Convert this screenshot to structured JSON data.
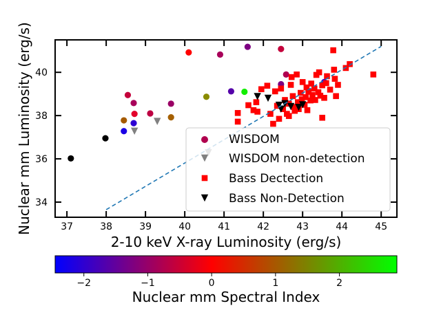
{
  "chart_data": {
    "type": "scatter",
    "xlabel": "2-10 keV X-ray Luminosity (erg/s)",
    "ylabel": "Nuclear mm Luminosity (erg/s)",
    "xlim": [
      36.7,
      45.4
    ],
    "ylim": [
      33.3,
      41.5
    ],
    "xticks": [
      "37",
      "38",
      "39",
      "40",
      "41",
      "42",
      "43",
      "44",
      "45"
    ],
    "yticks": [
      "34",
      "36",
      "38",
      "40"
    ],
    "grid": false,
    "legend_position": "lower-right",
    "colorbar": {
      "label": "Nuclear mm Spectral Index",
      "range": [
        -2.45,
        2.9
      ],
      "ticks": [
        "−2",
        "−1",
        "0",
        "1",
        "2"
      ],
      "colors": [
        "#0000ff",
        "#ff0000",
        "#00ff00"
      ]
    },
    "trend_line": {
      "x": [
        38,
        45
      ],
      "y": [
        33.65,
        41.2
      ],
      "color": "#1f77b4",
      "style": "dashed"
    },
    "series": [
      {
        "name": "WISDOM",
        "marker": "circle",
        "points": [
          {
            "x": 37.1,
            "y": 36.02,
            "c": "#000000"
          },
          {
            "x": 37.98,
            "y": 36.95,
            "c": "#000000"
          },
          {
            "x": 38.45,
            "y": 37.28,
            "c": "#1a00e5"
          },
          {
            "x": 38.7,
            "y": 37.65,
            "c": "#2c00d3"
          },
          {
            "x": 38.45,
            "y": 37.78,
            "c": "#a55a00"
          },
          {
            "x": 38.72,
            "y": 38.08,
            "c": "#e3002b"
          },
          {
            "x": 39.12,
            "y": 38.1,
            "c": "#bd0042"
          },
          {
            "x": 38.55,
            "y": 38.95,
            "c": "#c4003b"
          },
          {
            "x": 38.7,
            "y": 38.58,
            "c": "#a8005a"
          },
          {
            "x": 39.65,
            "y": 37.92,
            "c": "#a56000"
          },
          {
            "x": 39.65,
            "y": 38.55,
            "c": "#9a0065"
          },
          {
            "x": 40.1,
            "y": 40.92,
            "c": "#ff0000"
          },
          {
            "x": 40.55,
            "y": 38.87,
            "c": "#8a8c00"
          },
          {
            "x": 40.9,
            "y": 40.82,
            "c": "#a8005a"
          },
          {
            "x": 41.18,
            "y": 39.12,
            "c": "#5500a9"
          },
          {
            "x": 41.52,
            "y": 39.1,
            "c": "#12ee00"
          },
          {
            "x": 41.6,
            "y": 41.18,
            "c": "#7d0082"
          },
          {
            "x": 42.45,
            "y": 41.08,
            "c": "#c4003b"
          },
          {
            "x": 42.58,
            "y": 39.9,
            "c": "#b00051"
          },
          {
            "x": 42.45,
            "y": 39.45,
            "c": "#7c0083"
          },
          {
            "x": 43.55,
            "y": 39.55,
            "c": "#2d00d2"
          }
        ]
      },
      {
        "name": "WISDOM non-detection",
        "marker": "triangle-down",
        "color": "#808080",
        "points": [
          {
            "x": 38.72,
            "y": 37.28
          },
          {
            "x": 39.3,
            "y": 37.73
          },
          {
            "x": 40.6,
            "y": 36.28
          }
        ]
      },
      {
        "name": "Bass Dectection",
        "marker": "square",
        "color": "#ff0000",
        "points": [
          {
            "x": 41.35,
            "y": 37.72
          },
          {
            "x": 41.35,
            "y": 38.12
          },
          {
            "x": 41.62,
            "y": 38.48
          },
          {
            "x": 41.75,
            "y": 38.25
          },
          {
            "x": 41.85,
            "y": 38.18
          },
          {
            "x": 41.82,
            "y": 38.62
          },
          {
            "x": 41.95,
            "y": 39.22
          },
          {
            "x": 42.1,
            "y": 39.38
          },
          {
            "x": 42.18,
            "y": 38.08
          },
          {
            "x": 42.25,
            "y": 37.62
          },
          {
            "x": 42.3,
            "y": 39.12
          },
          {
            "x": 42.35,
            "y": 38.45
          },
          {
            "x": 42.4,
            "y": 37.85
          },
          {
            "x": 42.45,
            "y": 39.25
          },
          {
            "x": 42.5,
            "y": 38.3
          },
          {
            "x": 42.55,
            "y": 38.72
          },
          {
            "x": 42.6,
            "y": 38.08
          },
          {
            "x": 42.65,
            "y": 37.98
          },
          {
            "x": 42.65,
            "y": 38.55
          },
          {
            "x": 42.7,
            "y": 39.42
          },
          {
            "x": 42.72,
            "y": 39.78
          },
          {
            "x": 42.75,
            "y": 38.9
          },
          {
            "x": 42.78,
            "y": 38.4
          },
          {
            "x": 42.8,
            "y": 38.22
          },
          {
            "x": 42.85,
            "y": 39.9
          },
          {
            "x": 42.88,
            "y": 38.62
          },
          {
            "x": 42.9,
            "y": 38.3
          },
          {
            "x": 42.95,
            "y": 39.05
          },
          {
            "x": 42.98,
            "y": 38.75
          },
          {
            "x": 43.0,
            "y": 39.55
          },
          {
            "x": 43.05,
            "y": 38.5
          },
          {
            "x": 43.08,
            "y": 38.85
          },
          {
            "x": 43.1,
            "y": 39.3
          },
          {
            "x": 43.12,
            "y": 38.25
          },
          {
            "x": 43.15,
            "y": 39.1
          },
          {
            "x": 43.2,
            "y": 38.7
          },
          {
            "x": 43.22,
            "y": 39.48
          },
          {
            "x": 43.25,
            "y": 38.95
          },
          {
            "x": 43.3,
            "y": 39.25
          },
          {
            "x": 43.32,
            "y": 38.72
          },
          {
            "x": 43.35,
            "y": 39.88
          },
          {
            "x": 43.4,
            "y": 39.08
          },
          {
            "x": 43.42,
            "y": 40.0
          },
          {
            "x": 43.45,
            "y": 38.92
          },
          {
            "x": 43.5,
            "y": 39.4
          },
          {
            "x": 43.5,
            "y": 37.9
          },
          {
            "x": 43.55,
            "y": 38.82
          },
          {
            "x": 43.6,
            "y": 39.5
          },
          {
            "x": 43.62,
            "y": 39.82
          },
          {
            "x": 43.7,
            "y": 39.2
          },
          {
            "x": 43.78,
            "y": 41.02
          },
          {
            "x": 43.8,
            "y": 40.12
          },
          {
            "x": 43.82,
            "y": 39.7
          },
          {
            "x": 43.85,
            "y": 38.9
          },
          {
            "x": 43.9,
            "y": 39.42
          },
          {
            "x": 44.1,
            "y": 40.2
          },
          {
            "x": 44.2,
            "y": 40.38
          },
          {
            "x": 44.8,
            "y": 39.9
          }
        ]
      },
      {
        "name": "Bass Non-Detection",
        "marker": "triangle-down",
        "color": "#000000",
        "points": [
          {
            "x": 41.85,
            "y": 38.88
          },
          {
            "x": 42.12,
            "y": 38.8
          },
          {
            "x": 42.4,
            "y": 38.48
          },
          {
            "x": 42.45,
            "y": 38.3
          },
          {
            "x": 42.55,
            "y": 38.55
          },
          {
            "x": 42.7,
            "y": 38.42
          },
          {
            "x": 42.9,
            "y": 38.38
          },
          {
            "x": 43.0,
            "y": 38.5
          }
        ]
      }
    ]
  }
}
